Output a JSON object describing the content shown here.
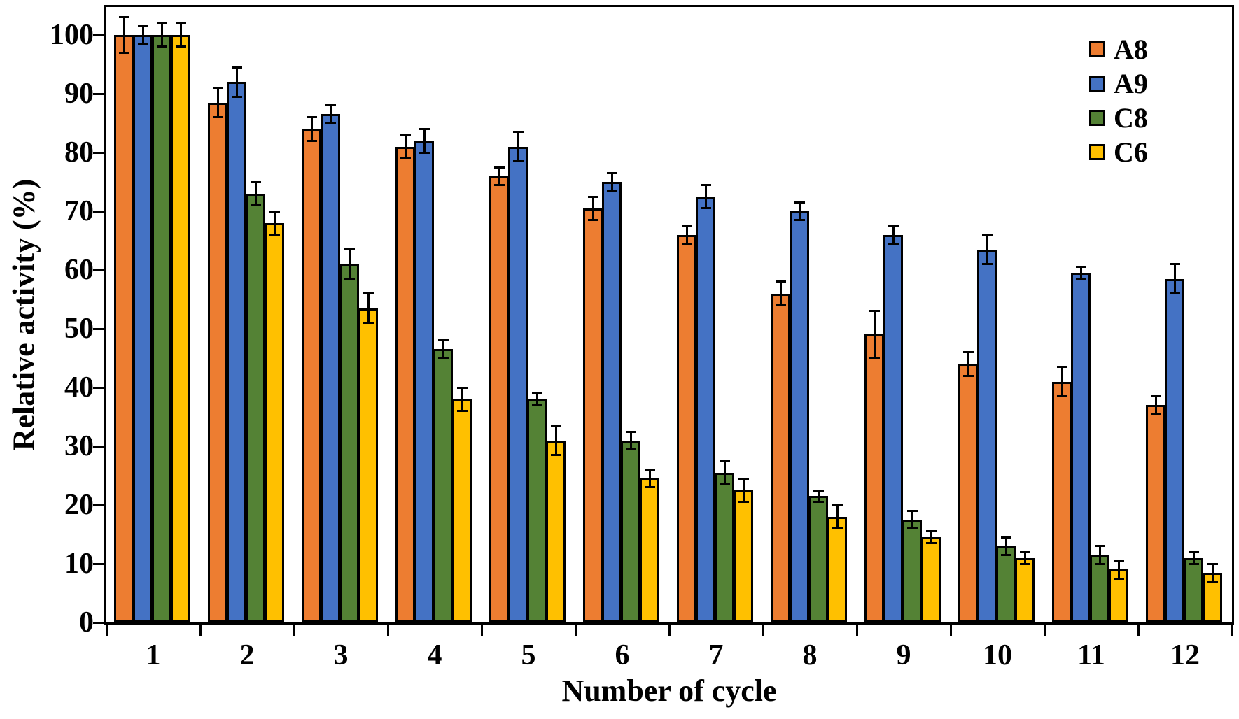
{
  "chart_data": {
    "type": "bar",
    "title": "",
    "xlabel": "Number of cycle",
    "ylabel": "Relative activity (%)",
    "categories": [
      "1",
      "2",
      "3",
      "4",
      "5",
      "6",
      "7",
      "8",
      "9",
      "10",
      "11",
      "12"
    ],
    "series": [
      {
        "name": "A8",
        "color": "#ED7D31",
        "values": [
          100,
          88.5,
          84,
          81,
          76,
          70.5,
          66,
          56,
          49,
          44,
          41,
          37
        ],
        "errors": [
          3,
          2.5,
          2,
          2,
          1.5,
          2,
          1.5,
          2,
          4,
          2,
          2.5,
          1.5
        ]
      },
      {
        "name": "A9",
        "color": "#4472C4",
        "values": [
          100,
          92,
          86.5,
          82,
          81,
          75,
          72.5,
          70,
          66,
          63.5,
          59.5,
          58.5
        ],
        "errors": [
          1.5,
          2.5,
          1.5,
          2,
          2.5,
          1.5,
          2,
          1.5,
          1.5,
          2.5,
          1,
          2.5
        ]
      },
      {
        "name": "C8",
        "color": "#548235",
        "values": [
          100,
          73,
          61,
          46.5,
          38,
          31,
          25.5,
          21.5,
          17.5,
          13,
          11.5,
          11
        ],
        "errors": [
          2,
          2,
          2.5,
          1.5,
          1,
          1.5,
          2,
          1,
          1.5,
          1.5,
          1.5,
          1
        ]
      },
      {
        "name": "C6",
        "color": "#FFC000",
        "values": [
          100,
          68,
          53.5,
          38,
          31,
          24.5,
          22.5,
          18,
          14.5,
          11,
          9,
          8.5
        ],
        "errors": [
          2,
          2,
          2.5,
          2,
          2.5,
          1.5,
          2,
          2,
          1,
          1,
          1.5,
          1.5
        ]
      }
    ],
    "yticks": [
      0,
      10,
      20,
      30,
      40,
      50,
      60,
      70,
      80,
      90,
      100
    ],
    "ylim": [
      0,
      100
    ],
    "grid": false,
    "error_bars": true,
    "legend_position": "top-right",
    "bar_border_color": "#000000",
    "axis_color": "#000000",
    "background": "#FFFFFF"
  }
}
